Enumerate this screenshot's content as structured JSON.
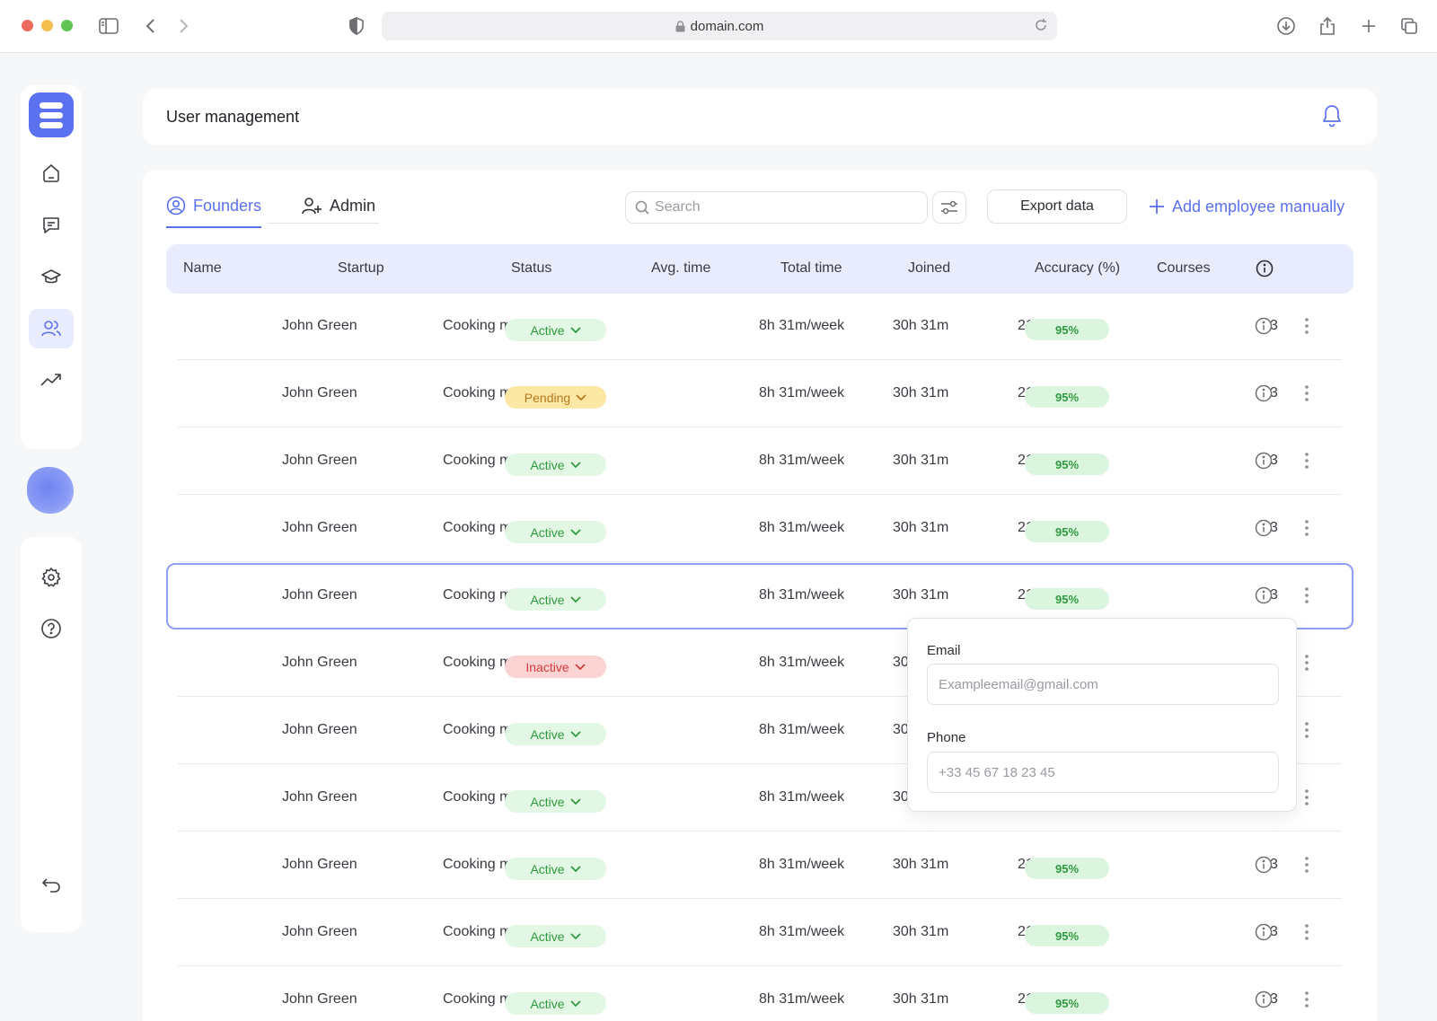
{
  "browser": {
    "url": "domain.com"
  },
  "header": {
    "title": "User management"
  },
  "tabs": [
    {
      "label": "Founders",
      "active": true,
      "icon": "user-circle-icon"
    },
    {
      "label": "Admin",
      "active": false,
      "icon": "user-plus-icon"
    }
  ],
  "toolbar": {
    "search_placeholder": "Search",
    "export_label": "Export data",
    "add_label": "Add employee manually"
  },
  "table": {
    "columns": [
      "Name",
      "Startup",
      "Status",
      "Avg. time",
      "Total time",
      "Joined",
      "Accuracy (%)",
      "Courses"
    ],
    "rows": [
      {
        "name": "John Green",
        "startup": "Cooking mentor",
        "status": "Active",
        "avg_time": "8h 31m/week",
        "total_time": "30h 31m",
        "joined": "21.06.2025",
        "accuracy": "95%",
        "courses": "3"
      },
      {
        "name": "John Green",
        "startup": "Cooking mentor",
        "status": "Pending",
        "avg_time": "8h 31m/week",
        "total_time": "30h 31m",
        "joined": "21.06.2025",
        "accuracy": "95%",
        "courses": "3"
      },
      {
        "name": "John Green",
        "startup": "Cooking mentor",
        "status": "Active",
        "avg_time": "8h 31m/week",
        "total_time": "30h 31m",
        "joined": "21.06.2025",
        "accuracy": "95%",
        "courses": "3"
      },
      {
        "name": "John Green",
        "startup": "Cooking mentor",
        "status": "Active",
        "avg_time": "8h 31m/week",
        "total_time": "30h 31m",
        "joined": "21.06.2025",
        "accuracy": "95%",
        "courses": "3"
      },
      {
        "name": "John Green",
        "startup": "Cooking mentor",
        "status": "Active",
        "avg_time": "8h 31m/week",
        "total_time": "30h 31m",
        "joined": "21.06.2025",
        "accuracy": "95%",
        "courses": "3",
        "selected": true
      },
      {
        "name": "John Green",
        "startup": "Cooking mentor",
        "status": "Inactive",
        "avg_time": "8h 31m/week",
        "total_time": "30h 31m",
        "joined": "",
        "accuracy": "",
        "courses": ""
      },
      {
        "name": "John Green",
        "startup": "Cooking mentor",
        "status": "Active",
        "avg_time": "8h 31m/week",
        "total_time": "30h 31m",
        "joined": "",
        "accuracy": "",
        "courses": ""
      },
      {
        "name": "John Green",
        "startup": "Cooking mentor",
        "status": "Active",
        "avg_time": "8h 31m/week",
        "total_time": "30h 31m",
        "joined": "",
        "accuracy": "",
        "courses": ""
      },
      {
        "name": "John Green",
        "startup": "Cooking mentor",
        "status": "Active",
        "avg_time": "8h 31m/week",
        "total_time": "30h 31m",
        "joined": "21.06.2025",
        "accuracy": "95%",
        "courses": "3"
      },
      {
        "name": "John Green",
        "startup": "Cooking mentor",
        "status": "Active",
        "avg_time": "8h 31m/week",
        "total_time": "30h 31m",
        "joined": "21.06.2025",
        "accuracy": "95%",
        "courses": "3"
      },
      {
        "name": "John Green",
        "startup": "Cooking mentor",
        "status": "Active",
        "avg_time": "8h 31m/week",
        "total_time": "30h 31m",
        "joined": "21.06.2025",
        "accuracy": "95%",
        "courses": "3"
      }
    ]
  },
  "popover": {
    "email_label": "Email",
    "email_placeholder": "Exampleemail@gmail.com",
    "phone_label": "Phone",
    "phone_placeholder": "+33 45 67 18 23 45"
  },
  "sidebar": {
    "items": [
      {
        "icon": "home-icon",
        "active": false
      },
      {
        "icon": "chat-icon",
        "active": false
      },
      {
        "icon": "graduation-cap-icon",
        "active": false
      },
      {
        "icon": "users-icon",
        "active": true
      },
      {
        "icon": "trending-up-icon",
        "active": false
      }
    ],
    "bottom": [
      {
        "icon": "gear-icon"
      },
      {
        "icon": "help-icon"
      },
      {
        "icon": "logout-icon"
      }
    ]
  },
  "colors": {
    "accent": "#5b71f0",
    "active_bg": "#e2f7e4",
    "active_text": "#2f9a3e",
    "pending_bg": "#fde7a5",
    "pending_text": "#b7791f",
    "inactive_bg": "#fbd3d3",
    "inactive_text": "#d63b3b"
  }
}
